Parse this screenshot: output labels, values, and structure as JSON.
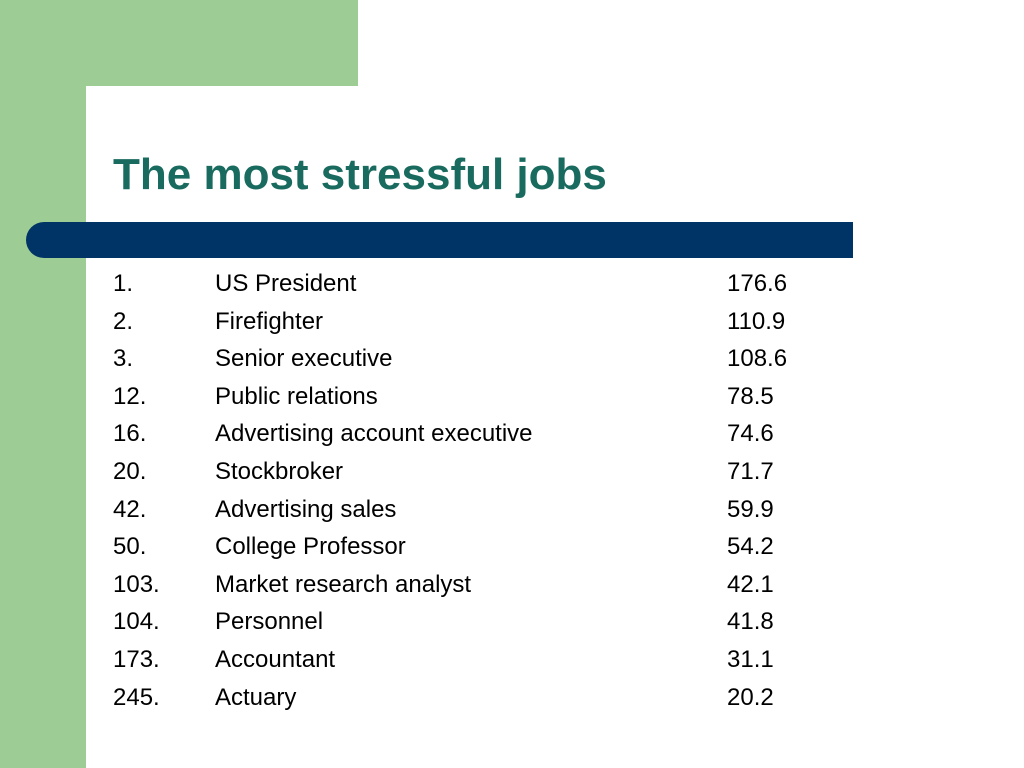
{
  "slide": {
    "title": "The most stressful jobs",
    "colors": {
      "title": "#1a6b5f",
      "bar": "#003466",
      "accent_green": "#9dcc95"
    },
    "rows": [
      {
        "rank": "1.",
        "job": "US President",
        "score": "176.6"
      },
      {
        "rank": "2.",
        "job": "Firefighter",
        "score": "110.9"
      },
      {
        "rank": "3.",
        "job": "Senior executive",
        "score": "108.6"
      },
      {
        "rank": "12.",
        "job": "Public relations",
        "score": "78.5"
      },
      {
        "rank": "16.",
        "job": "Advertising account executive",
        "score": "74.6"
      },
      {
        "rank": "20.",
        "job": "Stockbroker",
        "score": "71.7"
      },
      {
        "rank": "42.",
        "job": "Advertising sales",
        "score": "59.9"
      },
      {
        "rank": "50.",
        "job": "College Professor",
        "score": "54.2"
      },
      {
        "rank": "103.",
        "job": "Market research analyst",
        "score": "42.1"
      },
      {
        "rank": "104.",
        "job": "Personnel",
        "score": "41.8"
      },
      {
        "rank": "173.",
        "job": "Accountant",
        "score": "31.1"
      },
      {
        "rank": "245.",
        "job": "Actuary",
        "score": "20.2"
      }
    ]
  }
}
